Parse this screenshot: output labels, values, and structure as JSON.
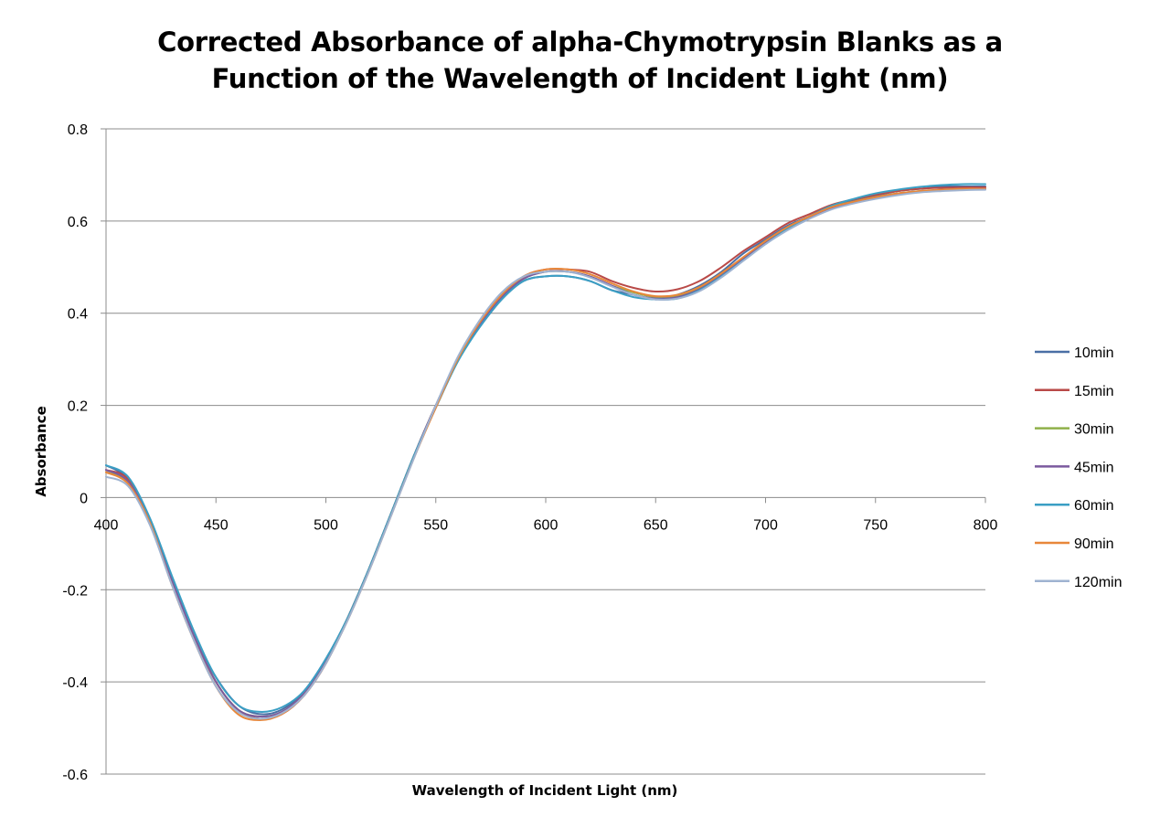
{
  "chart_data": {
    "type": "line",
    "title_line1": "Corrected Absorbance of alpha-Chymotrypsin Blanks as a",
    "title_line2": "Function of the Wavelength of Incident Light (nm)",
    "xlabel": "Wavelength of Incident Light (nm)",
    "ylabel": "Absorbance",
    "xlim": [
      400,
      800
    ],
    "ylim": [
      -0.6,
      0.8
    ],
    "x_ticks": [
      "400",
      "450",
      "500",
      "550",
      "600",
      "650",
      "700",
      "750",
      "800"
    ],
    "y_ticks": [
      "0.8",
      "0.6",
      "0.4",
      "0.2",
      "0",
      "-0.2",
      "-0.4",
      "-0.6"
    ],
    "grid": "horizontal",
    "legend_position": "right",
    "x": [
      400,
      410,
      420,
      430,
      440,
      450,
      460,
      470,
      480,
      490,
      500,
      510,
      520,
      530,
      540,
      550,
      560,
      570,
      580,
      590,
      600,
      610,
      620,
      630,
      640,
      650,
      660,
      670,
      680,
      690,
      700,
      710,
      720,
      730,
      740,
      750,
      760,
      770,
      780,
      790,
      800
    ],
    "series": [
      {
        "name": "10min",
        "color": "#4a6fa5",
        "values": [
          0.07,
          0.04,
          -0.05,
          -0.18,
          -0.3,
          -0.39,
          -0.45,
          -0.47,
          -0.46,
          -0.42,
          -0.35,
          -0.26,
          -0.15,
          -0.03,
          0.09,
          0.2,
          0.3,
          0.37,
          0.43,
          0.47,
          0.48,
          0.48,
          0.47,
          0.45,
          0.44,
          0.43,
          0.44,
          0.46,
          0.49,
          0.53,
          0.56,
          0.59,
          0.61,
          0.63,
          0.645,
          0.655,
          0.665,
          0.67,
          0.675,
          0.675,
          0.675
        ]
      },
      {
        "name": "15min",
        "color": "#b94a48",
        "values": [
          0.06,
          0.04,
          -0.05,
          -0.18,
          -0.3,
          -0.4,
          -0.46,
          -0.48,
          -0.47,
          -0.43,
          -0.36,
          -0.26,
          -0.15,
          -0.03,
          0.09,
          0.2,
          0.3,
          0.38,
          0.44,
          0.48,
          0.495,
          0.495,
          0.49,
          0.47,
          0.455,
          0.447,
          0.452,
          0.47,
          0.5,
          0.535,
          0.565,
          0.595,
          0.615,
          0.635,
          0.647,
          0.657,
          0.665,
          0.67,
          0.672,
          0.673,
          0.673
        ]
      },
      {
        "name": "30min",
        "color": "#8fb04a",
        "values": [
          0.055,
          0.035,
          -0.05,
          -0.18,
          -0.3,
          -0.4,
          -0.46,
          -0.475,
          -0.465,
          -0.425,
          -0.355,
          -0.26,
          -0.15,
          -0.03,
          0.09,
          0.2,
          0.3,
          0.375,
          0.435,
          0.475,
          0.49,
          0.49,
          0.48,
          0.46,
          0.445,
          0.435,
          0.437,
          0.455,
          0.485,
          0.52,
          0.555,
          0.585,
          0.61,
          0.63,
          0.642,
          0.652,
          0.66,
          0.665,
          0.668,
          0.67,
          0.67
        ]
      },
      {
        "name": "45min",
        "color": "#7b5a9e",
        "values": [
          0.06,
          0.035,
          -0.05,
          -0.18,
          -0.3,
          -0.4,
          -0.46,
          -0.475,
          -0.465,
          -0.425,
          -0.355,
          -0.26,
          -0.15,
          -0.03,
          0.09,
          0.2,
          0.3,
          0.375,
          0.435,
          0.475,
          0.49,
          0.49,
          0.48,
          0.46,
          0.44,
          0.432,
          0.435,
          0.452,
          0.482,
          0.518,
          0.552,
          0.583,
          0.607,
          0.627,
          0.64,
          0.65,
          0.658,
          0.664,
          0.668,
          0.67,
          0.67
        ]
      },
      {
        "name": "60min",
        "color": "#3b9fc4",
        "values": [
          0.07,
          0.045,
          -0.045,
          -0.17,
          -0.29,
          -0.39,
          -0.45,
          -0.465,
          -0.455,
          -0.42,
          -0.35,
          -0.26,
          -0.15,
          -0.03,
          0.09,
          0.195,
          0.295,
          0.37,
          0.43,
          0.47,
          0.48,
          0.48,
          0.47,
          0.45,
          0.435,
          0.43,
          0.432,
          0.45,
          0.48,
          0.515,
          0.55,
          0.583,
          0.61,
          0.633,
          0.648,
          0.66,
          0.668,
          0.674,
          0.678,
          0.68,
          0.68
        ]
      },
      {
        "name": "90min",
        "color": "#e8873a",
        "values": [
          0.055,
          0.03,
          -0.055,
          -0.19,
          -0.31,
          -0.41,
          -0.47,
          -0.483,
          -0.47,
          -0.43,
          -0.36,
          -0.265,
          -0.155,
          -0.035,
          0.085,
          0.195,
          0.3,
          0.38,
          0.44,
          0.48,
          0.495,
          0.495,
          0.485,
          0.465,
          0.447,
          0.437,
          0.44,
          0.457,
          0.487,
          0.522,
          0.557,
          0.587,
          0.61,
          0.63,
          0.642,
          0.652,
          0.66,
          0.665,
          0.668,
          0.67,
          0.67
        ]
      },
      {
        "name": "120min",
        "color": "#9fb3d1",
        "values": [
          0.045,
          0.025,
          -0.06,
          -0.19,
          -0.31,
          -0.41,
          -0.465,
          -0.48,
          -0.468,
          -0.43,
          -0.36,
          -0.265,
          -0.155,
          -0.035,
          0.085,
          0.2,
          0.305,
          0.385,
          0.445,
          0.48,
          0.49,
          0.49,
          0.478,
          0.458,
          0.44,
          0.43,
          0.432,
          0.448,
          0.478,
          0.514,
          0.55,
          0.58,
          0.605,
          0.625,
          0.638,
          0.648,
          0.656,
          0.662,
          0.665,
          0.667,
          0.668
        ]
      }
    ]
  }
}
